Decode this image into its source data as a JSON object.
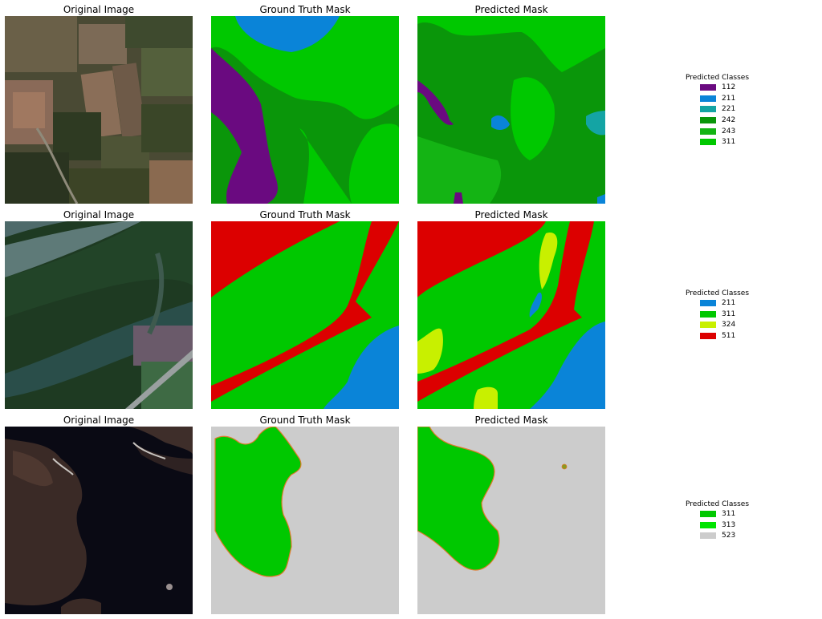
{
  "rows": [
    {
      "titles": {
        "original": "Original Image",
        "ground_truth": "Ground Truth Mask",
        "predicted": "Predicted Mask"
      },
      "legend": {
        "title": "Predicted Classes",
        "entries": [
          {
            "label": "112",
            "color": "#6a0a80"
          },
          {
            "label": "211",
            "color": "#0a84d8"
          },
          {
            "label": "221",
            "color": "#14a4a4"
          },
          {
            "label": "242",
            "color": "#0a960a"
          },
          {
            "label": "243",
            "color": "#14b414"
          },
          {
            "label": "311",
            "color": "#00c800"
          }
        ]
      }
    },
    {
      "titles": {
        "original": "Original Image",
        "ground_truth": "Ground Truth Mask",
        "predicted": "Predicted Mask"
      },
      "legend": {
        "title": "Predicted Classes",
        "entries": [
          {
            "label": "211",
            "color": "#0a84d8"
          },
          {
            "label": "311",
            "color": "#00c800"
          },
          {
            "label": "324",
            "color": "#c8f000"
          },
          {
            "label": "511",
            "color": "#dc0000"
          }
        ]
      }
    },
    {
      "titles": {
        "original": "Original Image",
        "ground_truth": "Ground Truth Mask",
        "predicted": "Predicted Mask"
      },
      "legend": {
        "title": "Predicted Classes",
        "entries": [
          {
            "label": "311",
            "color": "#00c800"
          },
          {
            "label": "313",
            "color": "#00e400"
          },
          {
            "label": "523",
            "color": "#cccccc"
          }
        ]
      }
    }
  ]
}
